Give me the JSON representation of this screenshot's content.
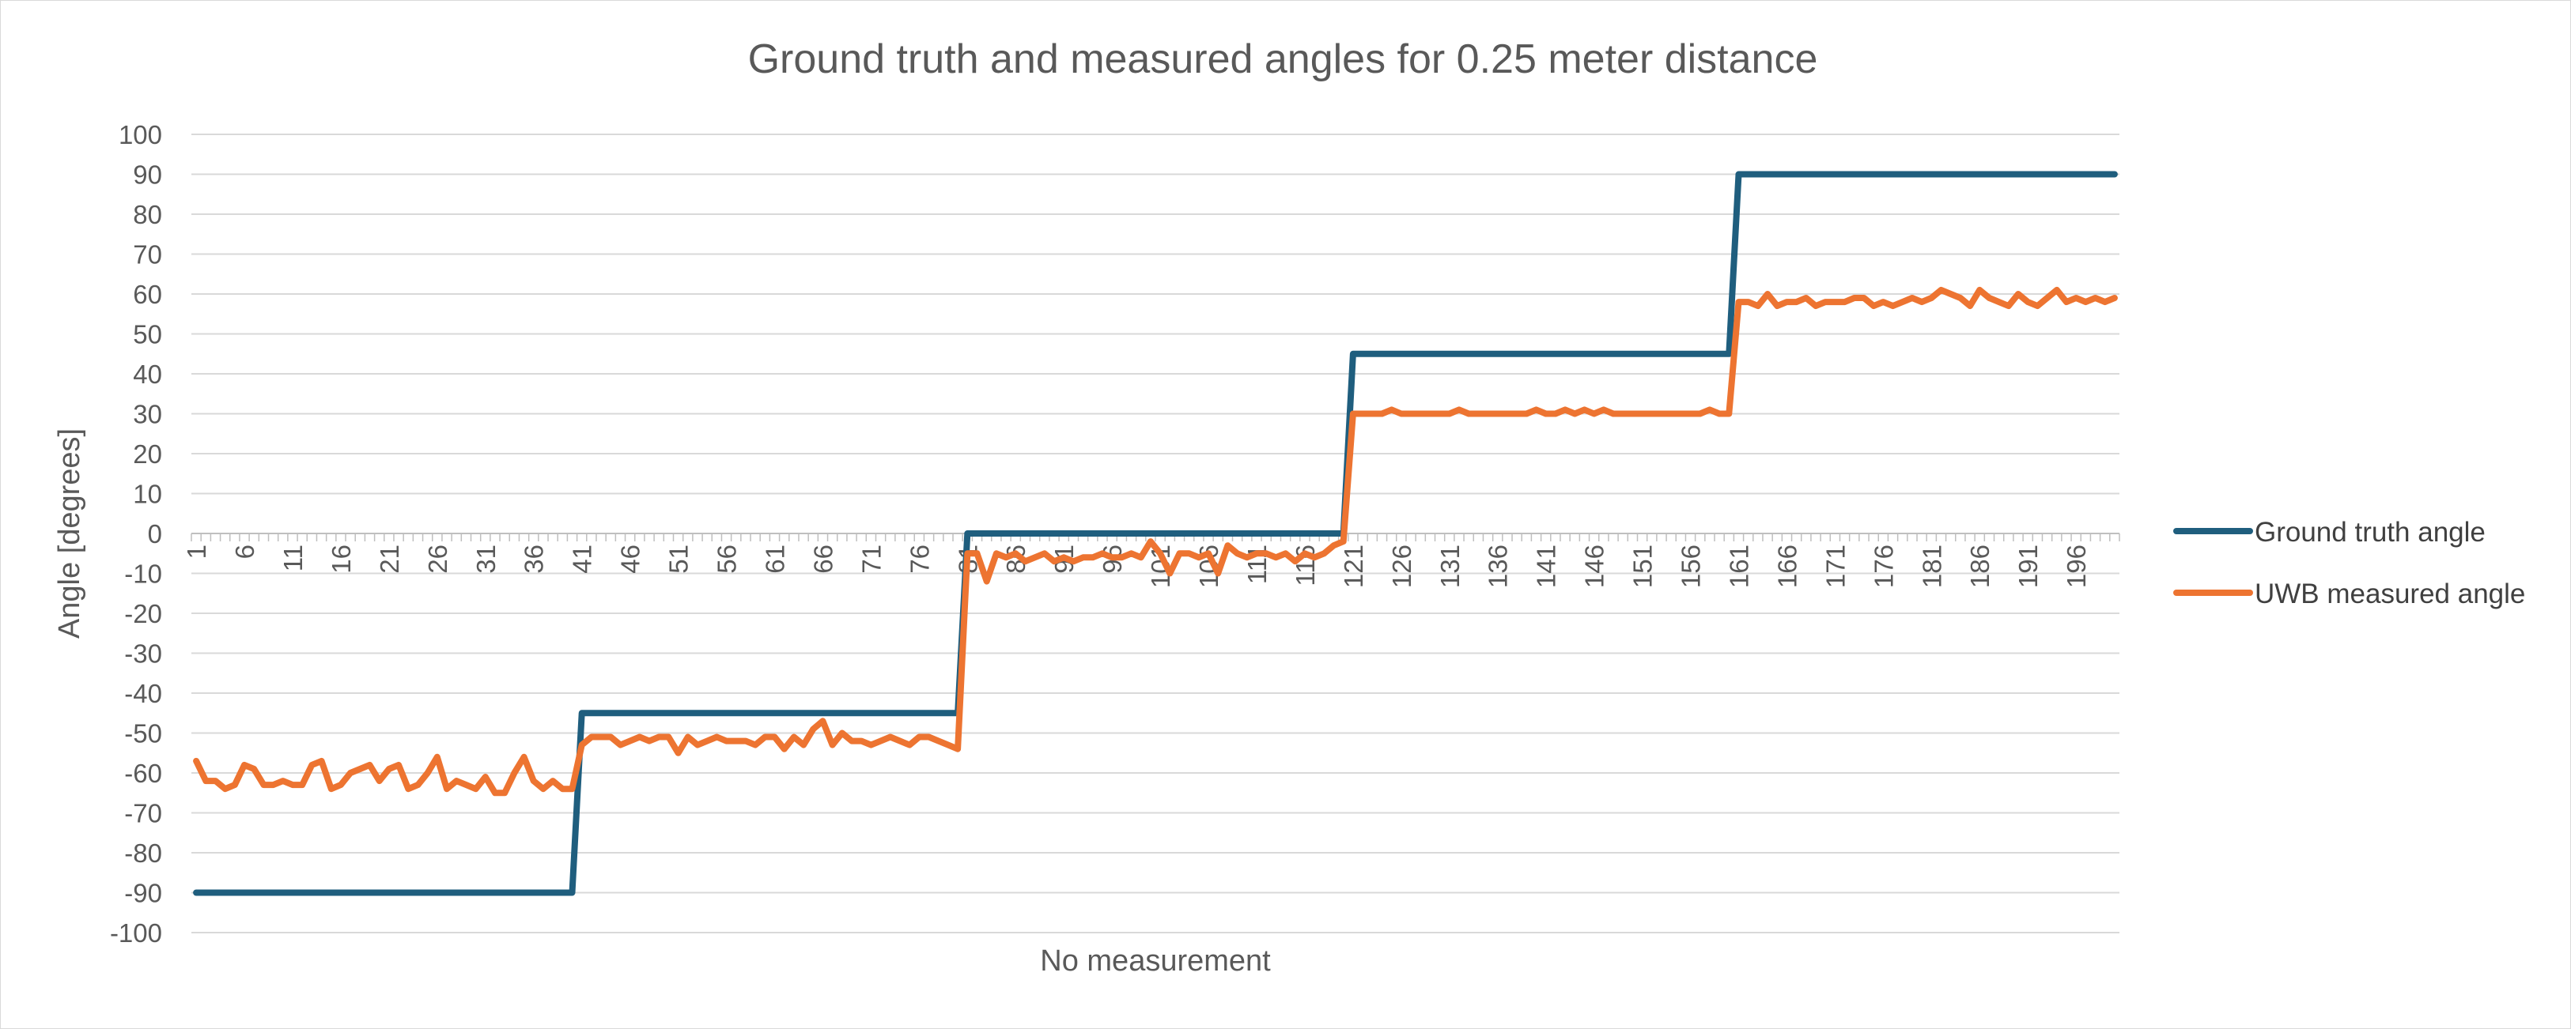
{
  "chart_data": {
    "type": "line",
    "title": "Ground truth and measured angles for 0.25 meter distance",
    "xlabel": "No measurement",
    "ylabel": "Angle [degrees]",
    "ylim": [
      -100,
      100
    ],
    "ytick_step": 10,
    "grid": true,
    "legend_position": "right",
    "x": [
      1,
      2,
      3,
      4,
      5,
      6,
      7,
      8,
      9,
      10,
      11,
      12,
      13,
      14,
      15,
      16,
      17,
      18,
      19,
      20,
      21,
      22,
      23,
      24,
      25,
      26,
      27,
      28,
      29,
      30,
      31,
      32,
      33,
      34,
      35,
      36,
      37,
      38,
      39,
      40,
      41,
      42,
      43,
      44,
      45,
      46,
      47,
      48,
      49,
      50,
      51,
      52,
      53,
      54,
      55,
      56,
      57,
      58,
      59,
      60,
      61,
      62,
      63,
      64,
      65,
      66,
      67,
      68,
      69,
      70,
      71,
      72,
      73,
      74,
      75,
      76,
      77,
      78,
      79,
      80,
      81,
      82,
      83,
      84,
      85,
      86,
      87,
      88,
      89,
      90,
      91,
      92,
      93,
      94,
      95,
      96,
      97,
      98,
      99,
      100,
      101,
      102,
      103,
      104,
      105,
      106,
      107,
      108,
      109,
      110,
      111,
      112,
      113,
      114,
      115,
      116,
      117,
      118,
      119,
      120,
      121,
      122,
      123,
      124,
      125,
      126,
      127,
      128,
      129,
      130,
      131,
      132,
      133,
      134,
      135,
      136,
      137,
      138,
      139,
      140,
      141,
      142,
      143,
      144,
      145,
      146,
      147,
      148,
      149,
      150,
      151,
      152,
      153,
      154,
      155,
      156,
      157,
      158,
      159,
      160,
      161,
      162,
      163,
      164,
      165,
      166,
      167,
      168,
      169,
      170,
      171,
      172,
      173,
      174,
      175,
      176,
      177,
      178,
      179,
      180,
      181,
      182,
      183,
      184,
      185,
      186,
      187,
      188,
      189,
      190,
      191,
      192,
      193,
      194,
      195,
      196,
      197,
      198,
      199,
      200
    ],
    "x_tick_labels": [
      "1",
      "6",
      "11",
      "16",
      "21",
      "26",
      "31",
      "36",
      "41",
      "46",
      "51",
      "56",
      "61",
      "66",
      "71",
      "76",
      "81",
      "86",
      "91",
      "96",
      "101",
      "106",
      "111",
      "116",
      "121",
      "126",
      "131",
      "136",
      "141",
      "146",
      "151",
      "156",
      "161",
      "166",
      "171",
      "176",
      "181",
      "186",
      "191",
      "196"
    ],
    "series": [
      {
        "name": "Ground truth angle",
        "color": "#1f5e7e",
        "values": [
          -90,
          -90,
          -90,
          -90,
          -90,
          -90,
          -90,
          -90,
          -90,
          -90,
          -90,
          -90,
          -90,
          -90,
          -90,
          -90,
          -90,
          -90,
          -90,
          -90,
          -90,
          -90,
          -90,
          -90,
          -90,
          -90,
          -90,
          -90,
          -90,
          -90,
          -90,
          -90,
          -90,
          -90,
          -90,
          -90,
          -90,
          -90,
          -90,
          -90,
          -45,
          -45,
          -45,
          -45,
          -45,
          -45,
          -45,
          -45,
          -45,
          -45,
          -45,
          -45,
          -45,
          -45,
          -45,
          -45,
          -45,
          -45,
          -45,
          -45,
          -45,
          -45,
          -45,
          -45,
          -45,
          -45,
          -45,
          -45,
          -45,
          -45,
          -45,
          -45,
          -45,
          -45,
          -45,
          -45,
          -45,
          -45,
          -45,
          -45,
          0,
          0,
          0,
          0,
          0,
          0,
          0,
          0,
          0,
          0,
          0,
          0,
          0,
          0,
          0,
          0,
          0,
          0,
          0,
          0,
          0,
          0,
          0,
          0,
          0,
          0,
          0,
          0,
          0,
          0,
          0,
          0,
          0,
          0,
          0,
          0,
          0,
          0,
          0,
          0,
          45,
          45,
          45,
          45,
          45,
          45,
          45,
          45,
          45,
          45,
          45,
          45,
          45,
          45,
          45,
          45,
          45,
          45,
          45,
          45,
          45,
          45,
          45,
          45,
          45,
          45,
          45,
          45,
          45,
          45,
          45,
          45,
          45,
          45,
          45,
          45,
          45,
          45,
          45,
          45,
          90,
          90,
          90,
          90,
          90,
          90,
          90,
          90,
          90,
          90,
          90,
          90,
          90,
          90,
          90,
          90,
          90,
          90,
          90,
          90,
          90,
          90,
          90,
          90,
          90,
          90,
          90,
          90,
          90,
          90,
          90,
          90,
          90,
          90,
          90,
          90,
          90,
          90,
          90,
          90
        ]
      },
      {
        "name": "UWB measured angle",
        "color": "#ed7431",
        "values": [
          -57,
          -62,
          -62,
          -64,
          -63,
          -58,
          -59,
          -63,
          -63,
          -62,
          -63,
          -63,
          -58,
          -57,
          -64,
          -63,
          -60,
          -59,
          -58,
          -62,
          -59,
          -58,
          -64,
          -63,
          -60,
          -56,
          -64,
          -62,
          -63,
          -64,
          -61,
          -65,
          -65,
          -60,
          -56,
          -62,
          -64,
          -62,
          -64,
          -64,
          -53,
          -51,
          -51,
          -51,
          -53,
          -52,
          -51,
          -52,
          -51,
          -51,
          -55,
          -51,
          -53,
          -52,
          -51,
          -52,
          -52,
          -52,
          -53,
          -51,
          -51,
          -54,
          -51,
          -53,
          -49,
          -47,
          -53,
          -50,
          -52,
          -52,
          -53,
          -52,
          -51,
          -52,
          -53,
          -51,
          -51,
          -52,
          -53,
          -54,
          -5,
          -5,
          -12,
          -5,
          -6,
          -5,
          -7,
          -6,
          -5,
          -7,
          -6,
          -7,
          -6,
          -6,
          -5,
          -6,
          -6,
          -5,
          -6,
          -2,
          -5,
          -10,
          -5,
          -5,
          -6,
          -5,
          -10,
          -3,
          -5,
          -6,
          -5,
          -5,
          -6,
          -5,
          -7,
          -5,
          -6,
          -5,
          -3,
          -2,
          30,
          30,
          30,
          30,
          31,
          30,
          30,
          30,
          30,
          30,
          30,
          31,
          30,
          30,
          30,
          30,
          30,
          30,
          30,
          31,
          30,
          30,
          31,
          30,
          31,
          30,
          31,
          30,
          30,
          30,
          30,
          30,
          30,
          30,
          30,
          30,
          30,
          31,
          30,
          30,
          58,
          58,
          57,
          60,
          57,
          58,
          58,
          59,
          57,
          58,
          58,
          58,
          59,
          59,
          57,
          58,
          57,
          58,
          59,
          58,
          59,
          61,
          60,
          59,
          57,
          61,
          59,
          58,
          57,
          60,
          58,
          57,
          59,
          61,
          58,
          59,
          58,
          59,
          58,
          59
        ]
      }
    ]
  }
}
